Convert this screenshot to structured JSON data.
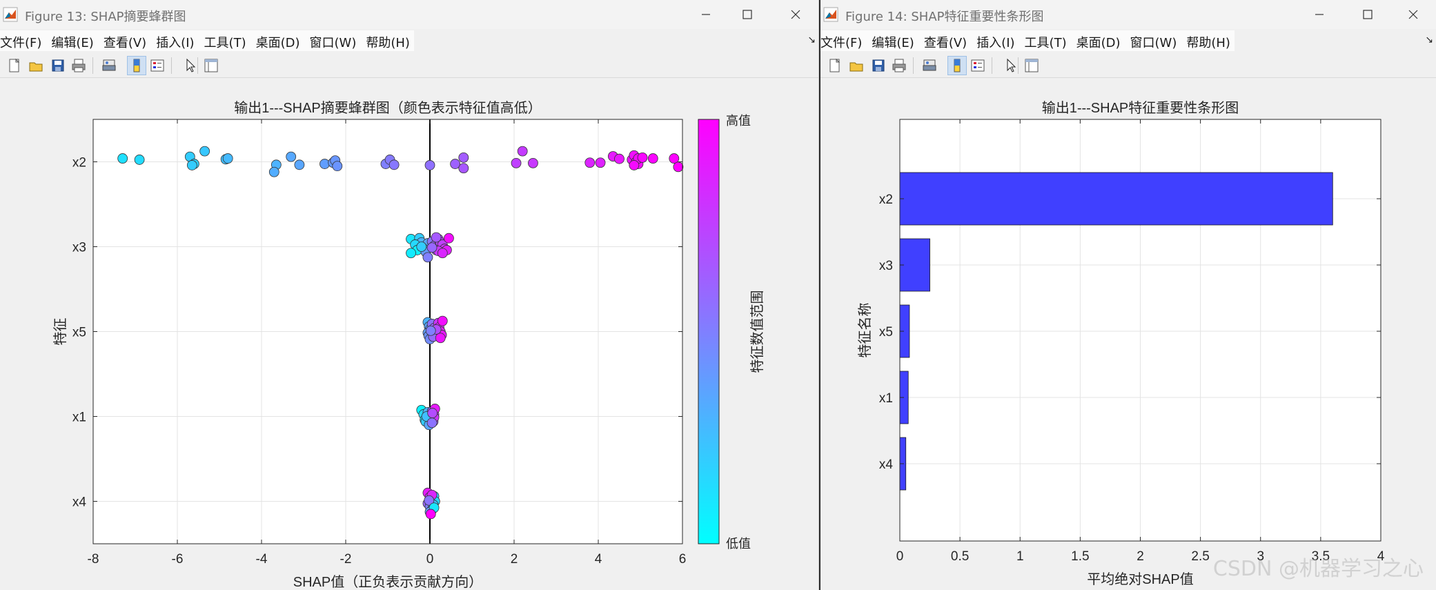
{
  "windows": {
    "fig13": {
      "title": "Figure 13: SHAP摘要蜂群图",
      "menu": [
        "文件(F)",
        "编辑(E)",
        "查看(V)",
        "插入(I)",
        "工具(T)",
        "桌面(D)",
        "窗口(W)",
        "帮助(H)"
      ],
      "menu_overflow": "↘",
      "toolbar_icons": [
        "new-file-icon",
        "open-folder-icon",
        "save-icon",
        "print-icon",
        "print-preview-icon",
        "colorbar-icon",
        "legend-icon",
        "pointer-icon",
        "property-inspector-icon"
      ]
    },
    "fig14": {
      "title": "Figure 14: SHAP特征重要性条形图",
      "menu": [
        "文件(F)",
        "编辑(E)",
        "查看(V)",
        "插入(I)",
        "工具(T)",
        "桌面(D)",
        "窗口(W)",
        "帮助(H)"
      ],
      "menu_overflow": "↘",
      "toolbar_icons": [
        "new-file-icon",
        "open-folder-icon",
        "save-icon",
        "print-icon",
        "print-preview-icon",
        "colorbar-icon",
        "legend-icon",
        "pointer-icon",
        "property-inspector-icon"
      ]
    }
  },
  "colors": {
    "low": "#00ffff",
    "high": "#ff00ff",
    "bar": "#4040ff",
    "zero_line": "#000000"
  },
  "watermark": "CSDN @机器学习之心",
  "chart_data": [
    {
      "type": "scatter",
      "title": "输出1---SHAP摘要蜂群图（颜色表示特征值高低）",
      "xlabel": "SHAP值（正负表示贡献方向）",
      "ylabel": "特征",
      "xlim": [
        -8,
        6
      ],
      "xticks": [
        -8,
        -6,
        -4,
        -2,
        0,
        2,
        4,
        6
      ],
      "categories": [
        "x2",
        "x3",
        "x5",
        "x1",
        "x4"
      ],
      "grid": true,
      "colorbar": {
        "label": "特征数值范围",
        "high_label": "高值",
        "low_label": "低值"
      },
      "series": [
        {
          "feature": "x2",
          "points": [
            [
              -7.3,
              0.08,
              0.12
            ],
            [
              -6.9,
              0.05,
              0.14
            ],
            [
              -5.7,
              0.12,
              0.2
            ],
            [
              -5.6,
              -0.05,
              0.18
            ],
            [
              -5.65,
              -0.08,
              0.2
            ],
            [
              -5.35,
              0.25,
              0.22
            ],
            [
              -4.85,
              0.06,
              0.25
            ],
            [
              -4.8,
              0.08,
              0.27
            ],
            [
              -3.65,
              -0.07,
              0.3
            ],
            [
              -3.7,
              -0.24,
              0.32
            ],
            [
              -3.3,
              0.12,
              0.34
            ],
            [
              -3.1,
              -0.07,
              0.35
            ],
            [
              -2.5,
              -0.05,
              0.38
            ],
            [
              -2.3,
              -0.02,
              0.4
            ],
            [
              -2.25,
              0.03,
              0.41
            ],
            [
              -2.2,
              -0.1,
              0.42
            ],
            [
              -1.05,
              -0.05,
              0.5
            ],
            [
              -0.95,
              0.05,
              0.52
            ],
            [
              -0.85,
              -0.07,
              0.53
            ],
            [
              0.0,
              -0.08,
              0.56
            ],
            [
              0.6,
              -0.05,
              0.62
            ],
            [
              0.8,
              0.1,
              0.64
            ],
            [
              0.8,
              -0.15,
              0.66
            ],
            [
              2.05,
              -0.03,
              0.75
            ],
            [
              2.2,
              0.25,
              0.77
            ],
            [
              2.45,
              -0.03,
              0.78
            ],
            [
              3.8,
              -0.02,
              0.86
            ],
            [
              4.05,
              -0.02,
              0.87
            ],
            [
              4.35,
              0.13,
              0.9
            ],
            [
              4.5,
              0.07,
              0.91
            ],
            [
              4.8,
              0.05,
              0.93
            ],
            [
              4.85,
              0.15,
              0.94
            ],
            [
              4.9,
              0.0,
              0.95
            ],
            [
              4.95,
              -0.05,
              0.95
            ],
            [
              4.95,
              0.08,
              0.96
            ],
            [
              5.05,
              0.1,
              0.97
            ],
            [
              5.3,
              0.08,
              0.98
            ],
            [
              5.8,
              0.08,
              0.99
            ],
            [
              5.9,
              -0.12,
              1.0
            ],
            [
              4.85,
              -0.08,
              0.96
            ]
          ]
        },
        {
          "feature": "x3",
          "points": [
            [
              -0.45,
              0.18,
              0.1
            ],
            [
              -0.25,
              0.2,
              0.2
            ],
            [
              -0.2,
              0.1,
              0.3
            ],
            [
              -0.35,
              0.05,
              0.15
            ],
            [
              -0.05,
              0.08,
              0.35
            ],
            [
              -0.15,
              -0.05,
              0.25
            ],
            [
              -0.3,
              -0.08,
              0.05
            ],
            [
              -0.45,
              -0.15,
              0.08
            ],
            [
              -0.1,
              -0.12,
              0.4
            ],
            [
              -0.05,
              -0.25,
              0.5
            ],
            [
              0.05,
              0.12,
              0.55
            ],
            [
              0.1,
              0.02,
              0.6
            ],
            [
              0.15,
              -0.08,
              0.62
            ],
            [
              0.2,
              0.18,
              0.7
            ],
            [
              0.25,
              0.1,
              0.72
            ],
            [
              0.3,
              0.05,
              0.75
            ],
            [
              0.35,
              -0.05,
              0.8
            ],
            [
              0.2,
              -0.1,
              0.78
            ],
            [
              0.45,
              0.2,
              0.95
            ],
            [
              0.4,
              -0.08,
              0.88
            ],
            [
              0.05,
              -0.02,
              0.6
            ],
            [
              0.15,
              0.22,
              0.65
            ],
            [
              -0.2,
              0.0,
              0.2
            ],
            [
              0.3,
              -0.15,
              0.85
            ]
          ]
        },
        {
          "feature": "x5",
          "points": [
            [
              -0.05,
              0.22,
              0.3
            ],
            [
              -0.02,
              0.12,
              0.35
            ],
            [
              0.0,
              0.05,
              0.4
            ],
            [
              -0.05,
              -0.03,
              0.38
            ],
            [
              -0.03,
              -0.1,
              0.42
            ],
            [
              0.0,
              -0.18,
              0.45
            ],
            [
              0.05,
              0.18,
              0.55
            ],
            [
              0.1,
              0.08,
              0.6
            ],
            [
              0.12,
              -0.02,
              0.62
            ],
            [
              0.08,
              -0.12,
              0.58
            ],
            [
              0.2,
              0.2,
              0.8
            ],
            [
              0.22,
              0.1,
              0.85
            ],
            [
              0.25,
              0.0,
              0.88
            ],
            [
              0.28,
              -0.08,
              0.9
            ],
            [
              0.3,
              0.25,
              0.95
            ],
            [
              0.25,
              -0.15,
              0.92
            ],
            [
              0.15,
              0.05,
              0.7
            ],
            [
              0.02,
              0.02,
              0.5
            ]
          ]
        },
        {
          "feature": "x1",
          "points": [
            [
              -0.2,
              0.15,
              0.05
            ],
            [
              -0.15,
              0.05,
              0.15
            ],
            [
              -0.12,
              -0.08,
              0.1
            ],
            [
              -0.1,
              -0.12,
              0.2
            ],
            [
              -0.05,
              0.1,
              0.3
            ],
            [
              -0.02,
              -0.2,
              0.35
            ],
            [
              0.0,
              0.02,
              0.45
            ],
            [
              0.02,
              -0.05,
              0.5
            ],
            [
              0.05,
              0.12,
              0.6
            ],
            [
              0.08,
              -0.12,
              0.65
            ],
            [
              0.1,
              0.05,
              0.75
            ],
            [
              0.12,
              0.18,
              0.9
            ],
            [
              0.1,
              -0.02,
              0.8
            ],
            [
              -0.08,
              0.0,
              0.25
            ],
            [
              0.05,
              -0.15,
              0.55
            ],
            [
              0.06,
              0.08,
              0.7
            ]
          ]
        },
        {
          "feature": "x4",
          "points": [
            [
              -0.05,
              0.2,
              0.9
            ],
            [
              0.0,
              0.1,
              0.8
            ],
            [
              0.05,
              0.05,
              0.7
            ],
            [
              -0.05,
              -0.05,
              0.6
            ],
            [
              0.0,
              -0.12,
              0.5
            ],
            [
              0.05,
              -0.2,
              0.3
            ],
            [
              0.1,
              0.12,
              0.2
            ],
            [
              0.12,
              0.0,
              0.15
            ],
            [
              0.08,
              -0.08,
              0.25
            ],
            [
              0.0,
              -0.25,
              0.4
            ],
            [
              0.05,
              0.15,
              0.85
            ],
            [
              -0.02,
              0.02,
              0.55
            ],
            [
              0.1,
              -0.15,
              0.1
            ],
            [
              0.02,
              -0.3,
              1.0
            ]
          ]
        }
      ]
    },
    {
      "type": "bar",
      "orientation": "horizontal",
      "title": "输出1---SHAP特征重要性条形图",
      "xlabel": "平均绝对SHAP值",
      "ylabel": "特征名称",
      "xlim": [
        0,
        4
      ],
      "xticks": [
        0,
        0.5,
        1,
        1.5,
        2,
        2.5,
        3,
        3.5,
        4
      ],
      "categories": [
        "x2",
        "x3",
        "x5",
        "x1",
        "x4"
      ],
      "values": [
        3.6,
        0.25,
        0.08,
        0.07,
        0.05
      ],
      "grid": true
    }
  ]
}
